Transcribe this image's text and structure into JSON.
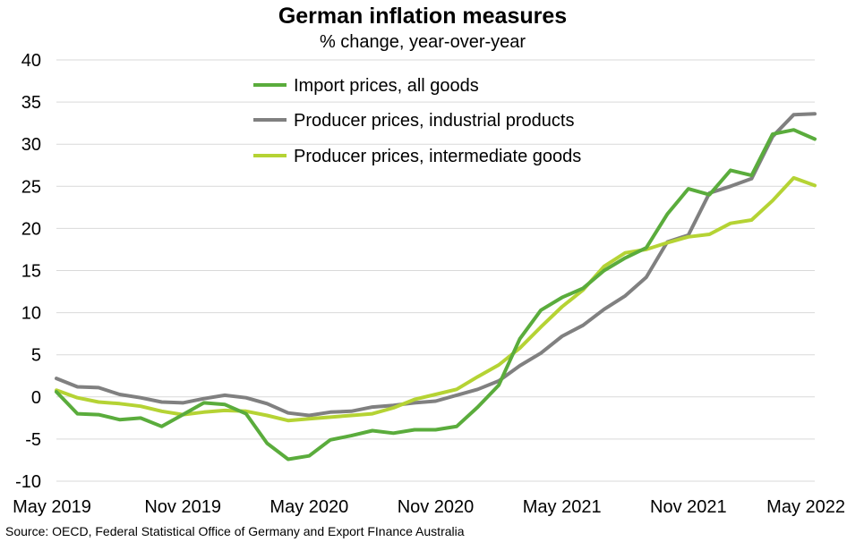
{
  "chart_data": {
    "type": "line",
    "title": "German inflation measures",
    "subtitle": "% change, year-over-year",
    "xlabel": "",
    "ylabel": "",
    "ylim": [
      -10,
      40
    ],
    "yticks": [
      "40",
      "35",
      "30",
      "25",
      "20",
      "15",
      "10",
      "5",
      "0",
      "-5",
      "-10"
    ],
    "ytick_values": [
      40,
      35,
      30,
      25,
      20,
      15,
      10,
      5,
      0,
      -5,
      -10
    ],
    "xtick_labels": [
      "May 2019",
      "Nov 2019",
      "May 2020",
      "Nov 2020",
      "May 2021",
      "Nov 2021",
      "May 2022"
    ],
    "xtick_indices": [
      0,
      6,
      12,
      18,
      24,
      30,
      36
    ],
    "grid": true,
    "legend_position": "top-center",
    "x": [
      "May 2019",
      "Jun 2019",
      "Jul 2019",
      "Aug 2019",
      "Sep 2019",
      "Oct 2019",
      "Nov 2019",
      "Dec 2019",
      "Jan 2020",
      "Feb 2020",
      "Mar 2020",
      "Apr 2020",
      "May 2020",
      "Jun 2020",
      "Jul 2020",
      "Aug 2020",
      "Sep 2020",
      "Oct 2020",
      "Nov 2020",
      "Dec 2020",
      "Jan 2021",
      "Feb 2021",
      "Mar 2021",
      "Apr 2021",
      "May 2021",
      "Jun 2021",
      "Jul 2021",
      "Aug 2021",
      "Sep 2021",
      "Oct 2021",
      "Nov 2021",
      "Dec 2021",
      "Jan 2022",
      "Feb 2022",
      "Mar 2022",
      "Apr 2022",
      "May 2022"
    ],
    "series": [
      {
        "name": "Import prices, all goods",
        "color": "#5aac3c",
        "values": [
          0.6,
          -2.0,
          -2.1,
          -2.7,
          -2.5,
          -3.5,
          -2.1,
          -0.7,
          -0.9,
          -2.0,
          -5.5,
          -7.4,
          -7.0,
          -5.1,
          -4.6,
          -4.0,
          -4.3,
          -3.9,
          -3.9,
          -3.5,
          -1.2,
          1.4,
          6.9,
          10.3,
          11.8,
          12.9,
          15.0,
          16.5,
          17.7,
          21.7,
          24.7,
          24.0,
          26.9,
          26.3,
          31.2,
          31.7,
          30.6
        ]
      },
      {
        "name": "Producer prices, industrial products",
        "color": "#808080",
        "values": [
          2.2,
          1.2,
          1.1,
          0.3,
          -0.1,
          -0.6,
          -0.7,
          -0.2,
          0.2,
          -0.1,
          -0.8,
          -1.9,
          -2.2,
          -1.8,
          -1.7,
          -1.2,
          -1.0,
          -0.7,
          -0.5,
          0.2,
          0.9,
          1.9,
          3.7,
          5.2,
          7.2,
          8.5,
          10.4,
          12.0,
          14.2,
          18.4,
          19.2,
          24.2,
          25.0,
          25.9,
          30.9,
          33.5,
          33.6
        ]
      },
      {
        "name": "Producer prices, intermediate goods",
        "color": "#b5d334",
        "values": [
          0.8,
          -0.1,
          -0.6,
          -0.8,
          -1.1,
          -1.7,
          -2.1,
          -1.8,
          -1.6,
          -1.7,
          -2.2,
          -2.8,
          -2.6,
          -2.4,
          -2.2,
          -2.0,
          -1.3,
          -0.3,
          0.3,
          0.9,
          2.4,
          3.8,
          5.8,
          8.3,
          10.7,
          12.7,
          15.5,
          17.1,
          17.5,
          18.3,
          19.0,
          19.3,
          20.6,
          21.0,
          23.3,
          26.0,
          25.1
        ]
      }
    ]
  },
  "source": "Source: OECD, Federal Statistical Office of Germany and Export FInance Australia"
}
